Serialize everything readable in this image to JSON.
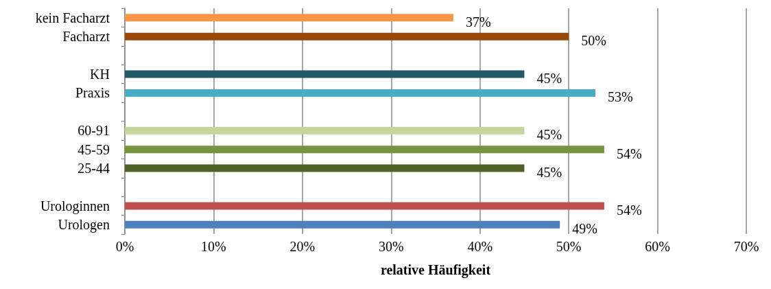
{
  "chart_data": {
    "type": "bar",
    "orientation": "horizontal",
    "xlabel": "relative Häufigkeit",
    "categories": [
      "kein Facharzt",
      "Facharzt",
      null,
      "KH",
      "Praxis",
      null,
      "60-91",
      "45-59",
      "25-44",
      null,
      "Urologinnen",
      "Urologen"
    ],
    "values": [
      37,
      50,
      null,
      45,
      53,
      null,
      45,
      54,
      45,
      null,
      54,
      49
    ],
    "colors": [
      "#f79646",
      "#984807",
      "#ffffff",
      "#215968",
      "#4bacc6",
      "#ffffff",
      "#c3d69b",
      "#77933c",
      "#4f6228",
      "#ffffff",
      "#c0504d",
      "#4f81bd"
    ],
    "value_labels": [
      "37%",
      "50%",
      null,
      "45%",
      "53%",
      null,
      "45%",
      "54%",
      "45%",
      null,
      "54%",
      "49%"
    ],
    "xlim": [
      0,
      70
    ],
    "xticks": [
      {
        "value": 0,
        "label": "0%"
      },
      {
        "value": 10,
        "label": "10%"
      },
      {
        "value": 20,
        "label": "20%"
      },
      {
        "value": 30,
        "label": "30%"
      },
      {
        "value": 40,
        "label": "40%"
      },
      {
        "value": 50,
        "label": "50%"
      },
      {
        "value": 60,
        "label": "60%"
      },
      {
        "value": 70,
        "label": "70%"
      }
    ],
    "grid": "x"
  }
}
